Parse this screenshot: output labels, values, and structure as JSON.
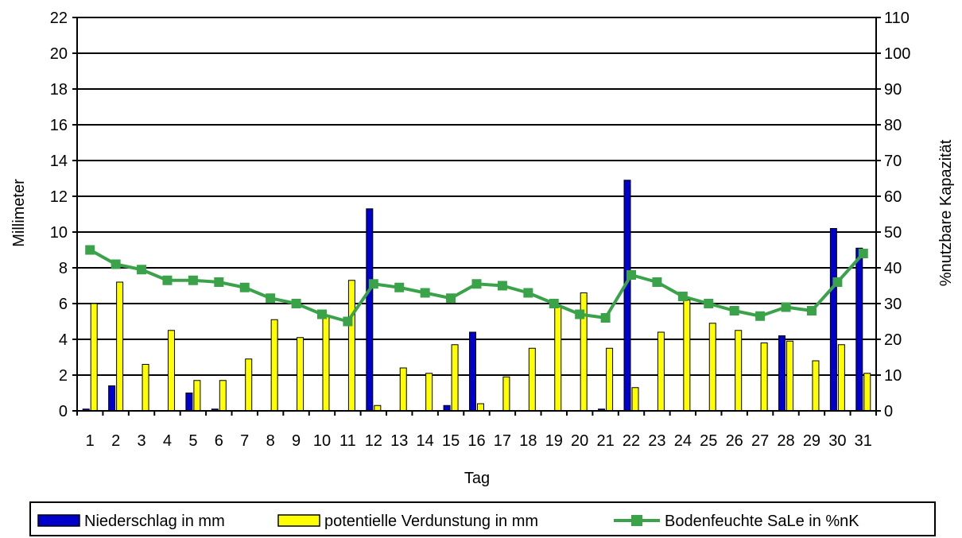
{
  "chart_data": {
    "type": "bar",
    "xlabel": "Tag",
    "ylabel": "Millimeter",
    "y2label": "%nutzbare Kapazität",
    "ylim": [
      0,
      22
    ],
    "y2lim": [
      0,
      110
    ],
    "yticks": [
      0,
      2,
      4,
      6,
      8,
      10,
      12,
      14,
      16,
      18,
      20,
      22
    ],
    "y2ticks": [
      0,
      10,
      20,
      30,
      40,
      50,
      60,
      70,
      80,
      90,
      100,
      110
    ],
    "grid": true,
    "legend_position": "bottom",
    "categories": [
      "1",
      "2",
      "3",
      "4",
      "5",
      "6",
      "7",
      "8",
      "9",
      "10",
      "11",
      "12",
      "13",
      "14",
      "15",
      "16",
      "17",
      "18",
      "19",
      "20",
      "21",
      "22",
      "23",
      "24",
      "25",
      "26",
      "27",
      "28",
      "29",
      "30",
      "31"
    ],
    "series": [
      {
        "name": "Niederschlag in mm",
        "type": "bar",
        "axis": "left",
        "color": "#0000cc",
        "values": [
          0.1,
          1.4,
          0,
          0,
          1.0,
          0.1,
          0,
          0,
          0,
          0,
          0,
          11.3,
          0,
          0,
          0.3,
          4.4,
          0,
          0,
          0,
          0,
          0.1,
          12.9,
          0,
          0,
          0,
          0,
          0,
          4.2,
          0,
          10.2,
          9.1
        ]
      },
      {
        "name": "potentielle Verdunstung in mm",
        "type": "bar",
        "axis": "left",
        "color": "#ffff00",
        "values": [
          6.0,
          7.2,
          2.6,
          4.5,
          1.7,
          1.7,
          2.9,
          5.1,
          4.1,
          5.3,
          7.3,
          0.3,
          2.4,
          2.1,
          3.7,
          0.4,
          1.9,
          3.5,
          5.8,
          6.6,
          3.5,
          1.3,
          4.4,
          6.2,
          4.9,
          4.5,
          3.8,
          3.9,
          2.8,
          3.7,
          2.1
        ]
      },
      {
        "name": "Bodenfeuchte SaLe in %nK",
        "type": "line",
        "axis": "right",
        "color": "#3aa34a",
        "values": [
          45,
          41,
          39.5,
          36.5,
          36.5,
          36,
          34.5,
          31.5,
          30,
          27,
          25,
          35.5,
          34.5,
          33,
          31.5,
          35.5,
          35,
          33,
          30,
          27,
          26,
          38,
          36,
          32,
          30,
          28,
          26.5,
          29,
          28,
          36,
          44
        ]
      }
    ]
  }
}
